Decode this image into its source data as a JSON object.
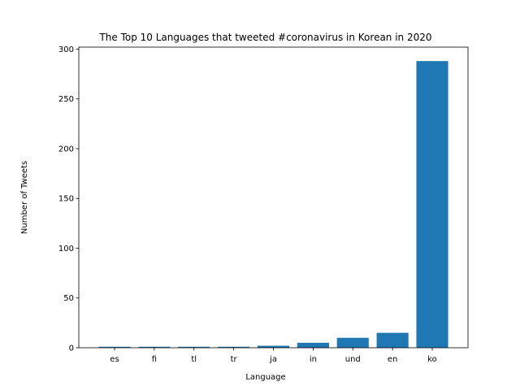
{
  "chart_data": {
    "type": "bar",
    "title": "The Top 10 Languages that tweeted #coronavirus in Korean in 2020",
    "xlabel": "Language",
    "ylabel": "Number of Tweets",
    "categories": [
      "es",
      "fi",
      "tl",
      "tr",
      "ja",
      "in",
      "und",
      "en",
      "ko"
    ],
    "values": [
      1,
      1,
      1,
      1,
      2,
      5,
      10,
      15,
      288
    ],
    "ylim": [
      0,
      302
    ],
    "yticks": [
      0,
      50,
      100,
      150,
      200,
      250,
      300
    ],
    "grid": false,
    "bar_color": "#1f77b4"
  }
}
